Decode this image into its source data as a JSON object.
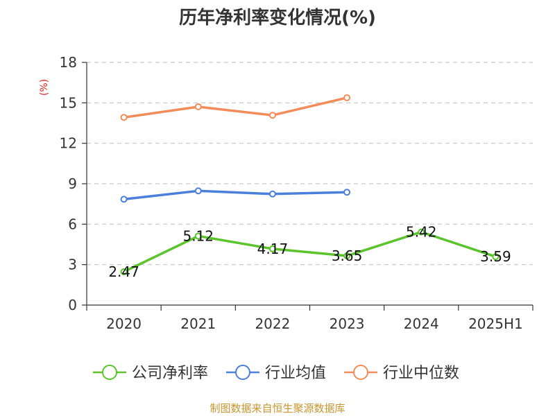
{
  "chart_data": {
    "type": "line",
    "title": "历年净利率变化情况(%)",
    "ylabel": "(%)",
    "categories": [
      "2020",
      "2021",
      "2022",
      "2023",
      "2024",
      "2025H1"
    ],
    "ylim": [
      0,
      18
    ],
    "yticks": [
      "0",
      "3",
      "6",
      "9",
      "12",
      "15",
      "18"
    ],
    "grid": true,
    "legend_position": "bottom",
    "series": [
      {
        "name": "公司净利率",
        "color": "#5ac42a",
        "values": [
          2.47,
          5.12,
          4.17,
          3.65,
          5.42,
          3.59
        ],
        "labels": [
          "2.47",
          "5.12",
          "4.17",
          "3.65",
          "5.42",
          "3.59"
        ]
      },
      {
        "name": "行业均值",
        "color": "#4a7fdb",
        "values": [
          7.85,
          8.47,
          8.24,
          8.37,
          null,
          null
        ]
      },
      {
        "name": "行业中位数",
        "color": "#f48c5a",
        "values": [
          13.92,
          14.71,
          14.08,
          15.38,
          null,
          null
        ]
      }
    ],
    "source": "制图数据来自恒生聚源数据库"
  }
}
